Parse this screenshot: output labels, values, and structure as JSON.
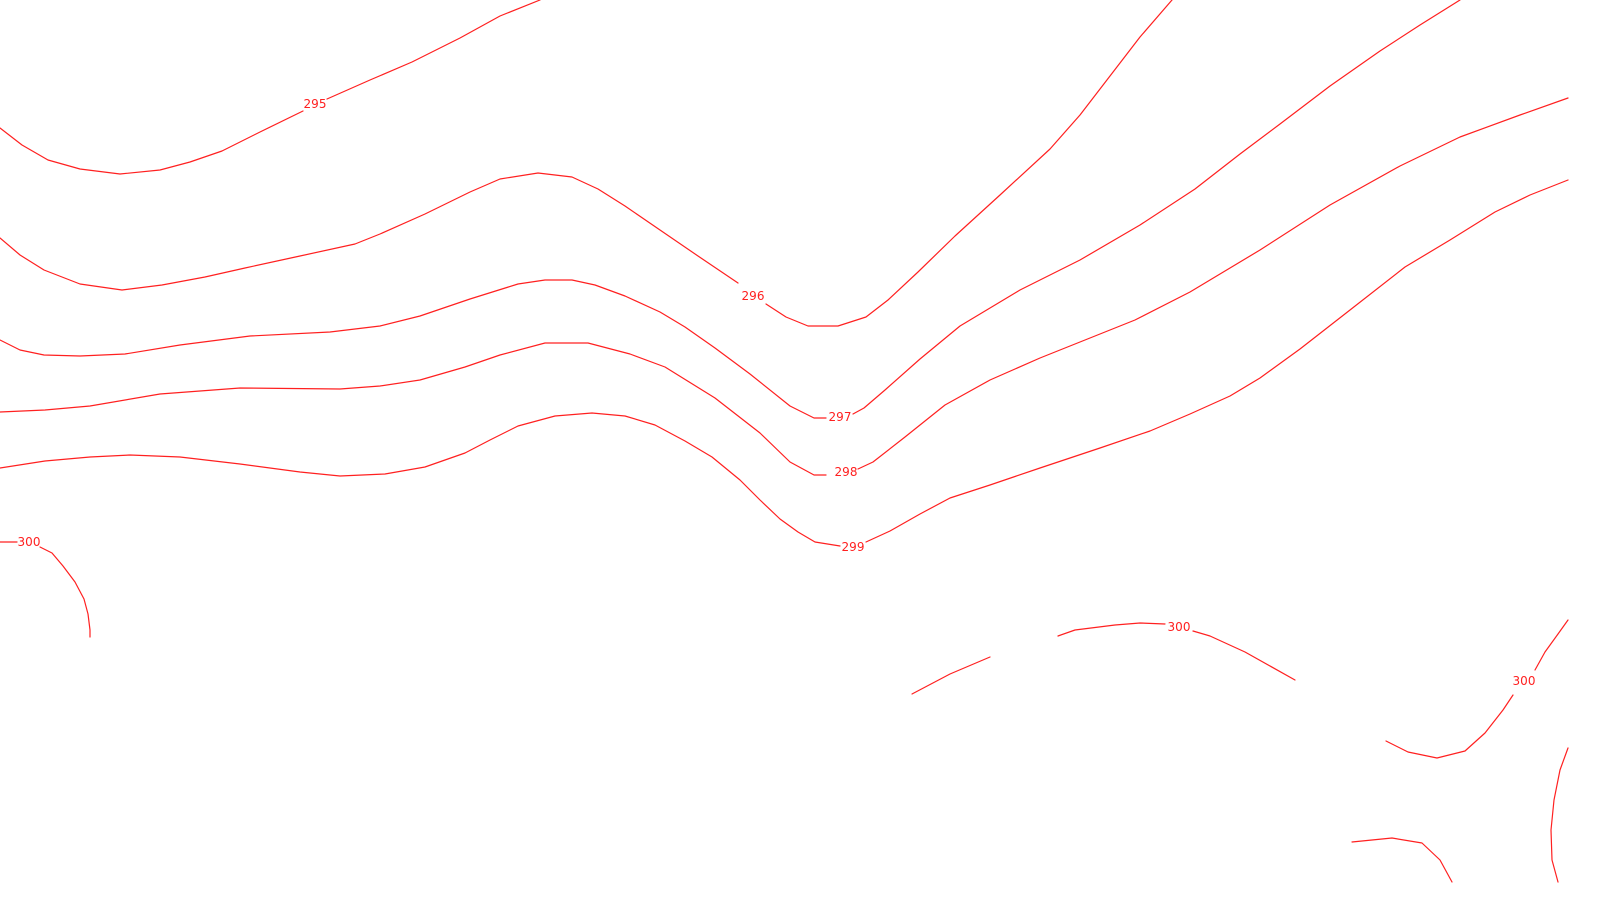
{
  "map": {
    "type": "contour",
    "line_color": "#ff2020",
    "background_color": "#ffffff",
    "contour_levels": [
      295,
      296,
      297,
      298,
      299,
      300
    ],
    "labels": [
      {
        "id": "lbl-295",
        "text": "295",
        "value": 295
      },
      {
        "id": "lbl-296",
        "text": "296",
        "value": 296
      },
      {
        "id": "lbl-297",
        "text": "297",
        "value": 297
      },
      {
        "id": "lbl-298",
        "text": "298",
        "value": 298
      },
      {
        "id": "lbl-299",
        "text": "299",
        "value": 299
      },
      {
        "id": "lbl-300-left",
        "text": "300",
        "value": 300
      },
      {
        "id": "lbl-300-mid",
        "text": "300",
        "value": 300
      },
      {
        "id": "lbl-300-right",
        "text": "300",
        "value": 300
      }
    ]
  }
}
